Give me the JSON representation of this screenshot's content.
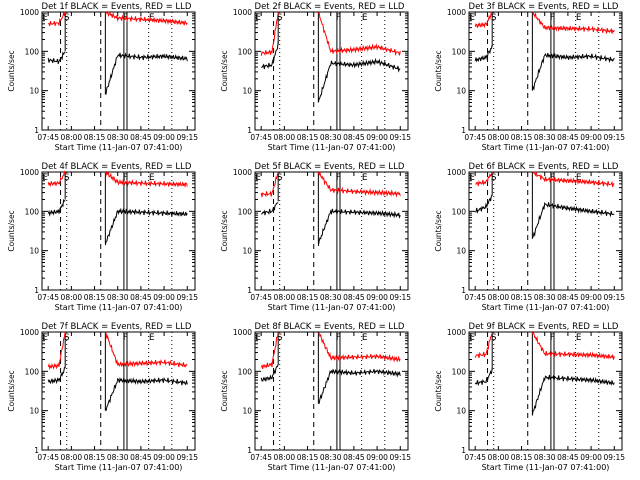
{
  "common": {
    "ylabel": "Counts/sec",
    "xlabel": "Start Time (11-Jan-07 07:41:00)",
    "xticks": [
      "07:45",
      "08:00",
      "08:15",
      "08:30",
      "08:45",
      "09:00",
      "09:15"
    ],
    "yticks": [
      "1",
      "10",
      "100",
      "1000"
    ],
    "markers": [
      "E",
      "S",
      "F",
      "E"
    ],
    "colors": {
      "events": "#000000",
      "lld": "#ff0000"
    }
  },
  "chart_data": [
    {
      "type": "line",
      "title": "Det 1f BLACK = Events, RED = LLD",
      "xlabel": "Start Time (11-Jan-07 07:41:00)",
      "ylabel": "Counts/sec",
      "ylim": [
        1,
        1000
      ],
      "yscale": "log",
      "series": [
        {
          "name": "Events",
          "color": "#000000",
          "x": [
            "07:45",
            "07:52",
            "07:56",
            "08:22",
            "08:30",
            "08:45",
            "09:00",
            "09:15"
          ],
          "y": [
            60,
            55,
            100,
            8,
            80,
            70,
            75,
            65
          ]
        },
        {
          "name": "LLD",
          "color": "#ff0000",
          "x": [
            "07:45",
            "07:52",
            "07:56",
            "08:22",
            "08:30",
            "08:45",
            "09:00",
            "09:15"
          ],
          "y": [
            500,
            520,
            1000,
            1000,
            700,
            650,
            600,
            520
          ]
        }
      ]
    },
    {
      "type": "line",
      "title": "Det 2f BLACK = Events, RED = LLD",
      "xlabel": "Start Time (11-Jan-07 07:41:00)",
      "ylabel": "Counts/sec",
      "ylim": [
        1,
        1000
      ],
      "yscale": "log",
      "series": [
        {
          "name": "Events",
          "color": "#000000",
          "x": [
            "07:45",
            "07:52",
            "07:56",
            "08:22",
            "08:30",
            "08:45",
            "09:00",
            "09:15"
          ],
          "y": [
            40,
            45,
            150,
            5,
            50,
            45,
            55,
            35
          ]
        },
        {
          "name": "LLD",
          "color": "#ff0000",
          "x": [
            "07:45",
            "07:52",
            "07:56",
            "08:22",
            "08:30",
            "08:45",
            "09:00",
            "09:15"
          ],
          "y": [
            90,
            95,
            1000,
            1000,
            100,
            110,
            130,
            90
          ]
        }
      ]
    },
    {
      "type": "line",
      "title": "Det 3f BLACK = Events, RED = LLD",
      "xlabel": "Start Time (11-Jan-07 07:41:00)",
      "ylabel": "Counts/sec",
      "ylim": [
        1,
        1000
      ],
      "yscale": "log",
      "series": [
        {
          "name": "Events",
          "color": "#000000",
          "x": [
            "07:45",
            "07:52",
            "07:56",
            "08:22",
            "08:30",
            "08:45",
            "09:00",
            "09:15"
          ],
          "y": [
            60,
            70,
            130,
            10,
            80,
            70,
            75,
            60
          ]
        },
        {
          "name": "LLD",
          "color": "#ff0000",
          "x": [
            "07:45",
            "07:52",
            "07:56",
            "08:22",
            "08:30",
            "08:45",
            "09:00",
            "09:15"
          ],
          "y": [
            450,
            480,
            1000,
            1000,
            400,
            380,
            370,
            320
          ]
        }
      ]
    },
    {
      "type": "line",
      "title": "Det 4f BLACK = Events, RED = LLD",
      "xlabel": "Start Time (11-Jan-07 07:41:00)",
      "ylabel": "Counts/sec",
      "ylim": [
        1,
        1000
      ],
      "yscale": "log",
      "series": [
        {
          "name": "Events",
          "color": "#000000",
          "x": [
            "07:45",
            "07:52",
            "07:56",
            "08:22",
            "08:30",
            "08:45",
            "09:00",
            "09:15"
          ],
          "y": [
            90,
            100,
            200,
            15,
            100,
            95,
            90,
            85
          ]
        },
        {
          "name": "LLD",
          "color": "#ff0000",
          "x": [
            "07:45",
            "07:52",
            "07:56",
            "08:22",
            "08:30",
            "08:45",
            "09:00",
            "09:15"
          ],
          "y": [
            500,
            520,
            1000,
            1000,
            550,
            520,
            500,
            480
          ]
        }
      ]
    },
    {
      "type": "line",
      "title": "Det 5f BLACK = Events, RED = LLD",
      "xlabel": "Start Time (11-Jan-07 07:41:00)",
      "ylabel": "Counts/sec",
      "ylim": [
        1,
        1000
      ],
      "yscale": "log",
      "series": [
        {
          "name": "Events",
          "color": "#000000",
          "x": [
            "07:45",
            "07:52",
            "07:56",
            "08:22",
            "08:30",
            "08:45",
            "09:00",
            "09:15"
          ],
          "y": [
            90,
            100,
            180,
            15,
            100,
            95,
            90,
            80
          ]
        },
        {
          "name": "LLD",
          "color": "#ff0000",
          "x": [
            "07:45",
            "07:52",
            "07:56",
            "08:22",
            "08:30",
            "08:45",
            "09:00",
            "09:15"
          ],
          "y": [
            270,
            280,
            1000,
            1000,
            350,
            320,
            300,
            280
          ]
        }
      ]
    },
    {
      "type": "line",
      "title": "Det 6f BLACK = Events, RED = LLD",
      "xlabel": "Start Time (11-Jan-07 07:41:00)",
      "ylabel": "Counts/sec",
      "ylim": [
        1,
        1000
      ],
      "yscale": "log",
      "series": [
        {
          "name": "Events",
          "color": "#000000",
          "x": [
            "07:45",
            "07:52",
            "07:56",
            "08:22",
            "08:30",
            "08:45",
            "09:00",
            "09:15"
          ],
          "y": [
            100,
            130,
            250,
            20,
            150,
            120,
            100,
            85
          ]
        },
        {
          "name": "LLD",
          "color": "#ff0000",
          "x": [
            "07:45",
            "07:52",
            "07:56",
            "08:22",
            "08:30",
            "08:45",
            "09:00",
            "09:15"
          ],
          "y": [
            500,
            550,
            1000,
            1000,
            650,
            600,
            550,
            480
          ]
        }
      ]
    },
    {
      "type": "line",
      "title": "Det 7f BLACK = Events, RED = LLD",
      "xlabel": "Start Time (11-Jan-07 07:41:00)",
      "ylabel": "Counts/sec",
      "ylim": [
        1,
        1000
      ],
      "yscale": "log",
      "series": [
        {
          "name": "Events",
          "color": "#000000",
          "x": [
            "07:45",
            "07:52",
            "07:56",
            "08:22",
            "08:30",
            "08:45",
            "09:00",
            "09:15"
          ],
          "y": [
            55,
            60,
            120,
            10,
            60,
            55,
            60,
            50
          ]
        },
        {
          "name": "LLD",
          "color": "#ff0000",
          "x": [
            "07:45",
            "07:52",
            "07:56",
            "08:22",
            "08:30",
            "08:45",
            "09:00",
            "09:15"
          ],
          "y": [
            130,
            140,
            1000,
            1000,
            150,
            160,
            170,
            140
          ]
        }
      ]
    },
    {
      "type": "line",
      "title": "Det 8f BLACK = Events, RED = LLD",
      "xlabel": "Start Time (11-Jan-07 07:41:00)",
      "ylabel": "Counts/sec",
      "ylim": [
        1,
        1000
      ],
      "yscale": "log",
      "series": [
        {
          "name": "Events",
          "color": "#000000",
          "x": [
            "07:45",
            "07:52",
            "07:56",
            "08:22",
            "08:30",
            "08:45",
            "09:00",
            "09:15"
          ],
          "y": [
            60,
            70,
            150,
            15,
            100,
            90,
            100,
            85
          ]
        },
        {
          "name": "LLD",
          "color": "#ff0000",
          "x": [
            "07:45",
            "07:52",
            "07:56",
            "08:22",
            "08:30",
            "08:45",
            "09:00",
            "09:15"
          ],
          "y": [
            130,
            150,
            1000,
            1000,
            220,
            230,
            240,
            200
          ]
        }
      ]
    },
    {
      "type": "line",
      "title": "Det 9f BLACK = Events, RED = LLD",
      "xlabel": "Start Time (11-Jan-07 07:41:00)",
      "ylabel": "Counts/sec",
      "ylim": [
        1,
        1000
      ],
      "yscale": "log",
      "series": [
        {
          "name": "Events",
          "color": "#000000",
          "x": [
            "07:45",
            "07:52",
            "07:56",
            "08:22",
            "08:30",
            "08:45",
            "09:00",
            "09:15"
          ],
          "y": [
            50,
            55,
            110,
            8,
            70,
            65,
            60,
            50
          ]
        },
        {
          "name": "LLD",
          "color": "#ff0000",
          "x": [
            "07:45",
            "07:52",
            "07:56",
            "08:22",
            "08:30",
            "08:45",
            "09:00",
            "09:15"
          ],
          "y": [
            250,
            270,
            1000,
            1000,
            280,
            270,
            260,
            230
          ]
        }
      ]
    }
  ]
}
